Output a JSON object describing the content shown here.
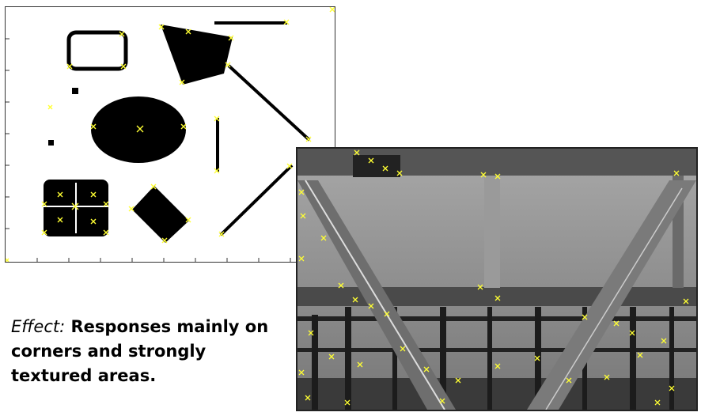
{
  "caption": {
    "lead": "Effect:",
    "body": "Responses mainly on corners and strongly textured areas."
  },
  "colors": {
    "marker": "#ffff33",
    "shape_fill": "#000000",
    "photo_sky": "#8c8c8c"
  },
  "figures": {
    "left": "binary-shapes-with-corner-responses",
    "right": "bridge-truss-photo-with-corner-responses"
  }
}
